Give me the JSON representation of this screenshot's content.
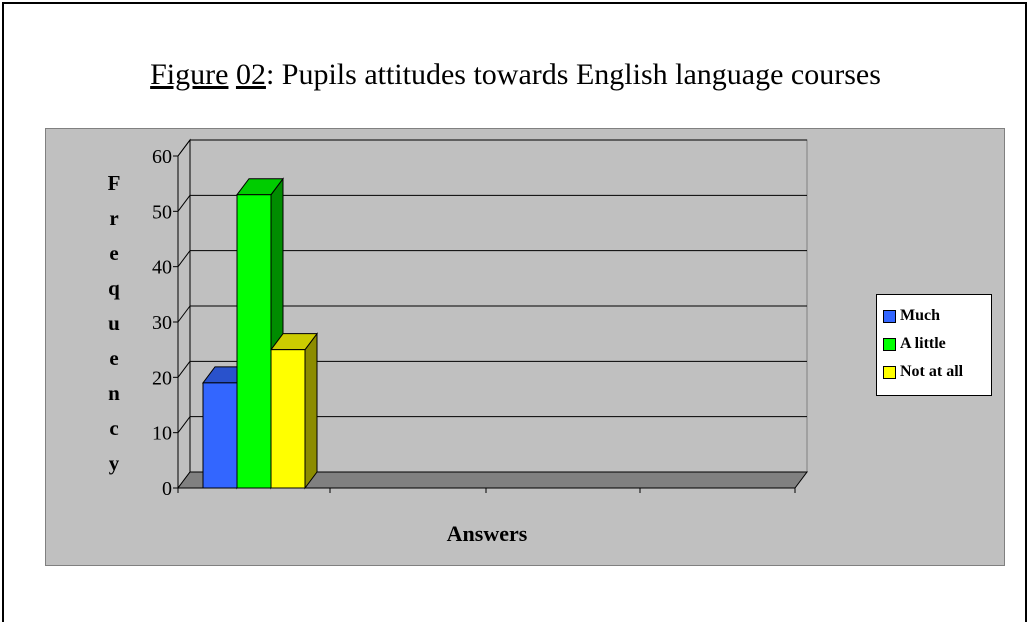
{
  "title": {
    "prefix": "Figure",
    "number": "02",
    "text": ": Pupils attitudes towards English language courses"
  },
  "chart_data": {
    "type": "bar",
    "title": "Figure 02: Pupils attitudes towards English language courses",
    "xlabel": "Answers",
    "ylabel": "Frequency",
    "ylim": [
      0,
      60
    ],
    "yticks": [
      "0",
      "10",
      "20",
      "30",
      "40",
      "50",
      "60"
    ],
    "grid": true,
    "legend_position": "right",
    "series": [
      {
        "name": "Much",
        "values": [
          19
        ],
        "color": "#3366ff"
      },
      {
        "name": "A little",
        "values": [
          53
        ],
        "color": "#00ff00"
      },
      {
        "name": "Not at all",
        "values": [
          25
        ],
        "color": "#ffff00"
      }
    ]
  }
}
